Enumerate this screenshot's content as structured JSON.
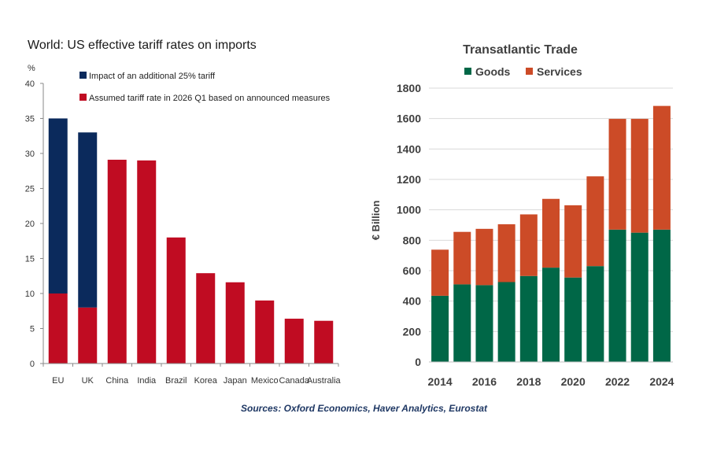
{
  "sources": "Sources: Oxford Economics, Haver Analytics, Eurostat",
  "chart_data": [
    {
      "type": "bar",
      "stacked": true,
      "title": "World: US effective tariff rates on imports",
      "ylabel": "%",
      "ylim": [
        0,
        40
      ],
      "yticks": [
        0,
        5,
        10,
        15,
        20,
        25,
        30,
        35,
        40
      ],
      "grid": false,
      "legend_position": "top-right",
      "categories": [
        "EU",
        "UK",
        "China",
        "India",
        "Brazil",
        "Korea",
        "Japan",
        "Mexico",
        "Canada",
        "Australia"
      ],
      "series": [
        {
          "name": "Assumed tariff rate in 2026 Q1 based on announced measures",
          "color": "#c00c22",
          "values": [
            10,
            8,
            29.1,
            29,
            18,
            12.9,
            11.6,
            9,
            6.4,
            6.1
          ]
        },
        {
          "name": "Impact of an additional 25% tariff",
          "color": "#0b2a5c",
          "values": [
            25,
            25,
            0,
            0,
            0,
            0,
            0,
            0,
            0,
            0
          ]
        }
      ]
    },
    {
      "type": "bar",
      "stacked": true,
      "title": "Transatlantic Trade",
      "ylabel": "€ Billion",
      "ylim": [
        0,
        1800
      ],
      "yticks": [
        0,
        200,
        400,
        600,
        800,
        1000,
        1200,
        1400,
        1600,
        1800
      ],
      "grid": true,
      "legend_position": "top",
      "categories": [
        "2014",
        "2015",
        "2016",
        "2017",
        "2018",
        "2019",
        "2020",
        "2021",
        "2022",
        "2023",
        "2024"
      ],
      "xtick_labels": [
        "2014",
        "2016",
        "2018",
        "2020",
        "2022",
        "2024"
      ],
      "series": [
        {
          "name": "Goods",
          "color": "#006747",
          "values": [
            435,
            510,
            505,
            525,
            565,
            620,
            555,
            630,
            870,
            850,
            870
          ]
        },
        {
          "name": "Services",
          "color": "#cc4b27",
          "values": [
            303,
            345,
            370,
            380,
            405,
            452,
            475,
            590,
            728,
            748,
            813
          ]
        }
      ]
    }
  ]
}
